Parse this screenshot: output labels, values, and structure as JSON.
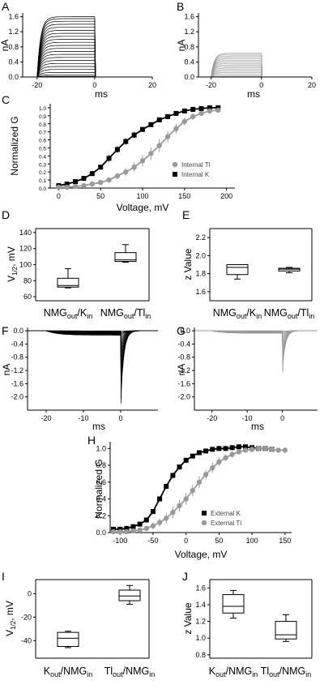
{
  "colors": {
    "k": "#000000",
    "tl": "#9a9a9a",
    "axis": "#000000"
  },
  "panels": {
    "A": {
      "letter": "A",
      "xlabel": "ms",
      "ylabel": "nA",
      "xticks": [
        "-20",
        "0",
        "20"
      ],
      "yticks": [
        "0.0",
        "0.4",
        "0.8",
        "1.2",
        "1.6"
      ]
    },
    "B": {
      "letter": "B",
      "xlabel": "ms",
      "ylabel": "nA",
      "xticks": [
        "-20",
        "0",
        "20"
      ],
      "yticks": [
        "0.0",
        "0.4",
        "0.8",
        "1.2",
        "1.6"
      ]
    },
    "C": {
      "letter": "C",
      "xlabel": "Voltage, mV",
      "ylabel": "Normalized G",
      "xticks": [
        "0",
        "50",
        "100",
        "150",
        "200"
      ],
      "yticks": [
        "0.0",
        "0.1",
        "0.2",
        "0.3",
        "0.4",
        "0.5",
        "0.6",
        "0.7",
        "0.8",
        "0.9",
        "1.0"
      ],
      "legend": [
        "Internal Tl",
        "Internal K"
      ]
    },
    "D": {
      "letter": "D",
      "ylabel_main": "V",
      "ylabel_sub": "1/2",
      "ylabel_tail": ", mV",
      "yticks": [
        "60",
        "80",
        "100",
        "120",
        "140"
      ],
      "cats": [
        {
          "a": "NMG",
          "as": "out",
          "b": "/K",
          "bs": "in"
        },
        {
          "a": "NMG",
          "as": "out",
          "b": "/Tl",
          "bs": "in"
        }
      ]
    },
    "E": {
      "letter": "E",
      "ylabel": "z Value",
      "yticks": [
        "1.6",
        "1.8",
        "2.0",
        "2.2"
      ],
      "cats": [
        {
          "a": "NMG",
          "as": "out",
          "b": "/K",
          "bs": "in"
        },
        {
          "a": "NMG",
          "as": "out",
          "b": "/Tl",
          "bs": "in"
        }
      ]
    },
    "F": {
      "letter": "F",
      "xlabel": "ms",
      "ylabel": "nA",
      "xticks": [
        "-20",
        "-10",
        "0"
      ],
      "yticks": [
        "0.0",
        "-0.4",
        "-0.8",
        "-1.2",
        "-1.6",
        "-2.0"
      ]
    },
    "G": {
      "letter": "G",
      "xlabel": "ms",
      "ylabel": "nA",
      "xticks": [
        "-20",
        "-10",
        "0"
      ],
      "yticks": [
        "0.0",
        "-0.4",
        "-0.8",
        "-1.2",
        "-1.6",
        "-2.0"
      ]
    },
    "H": {
      "letter": "H",
      "xlabel": "Voltage, mV",
      "ylabel": "Normalized G",
      "xticks": [
        "-100",
        "-50",
        "0",
        "50",
        "100",
        "150"
      ],
      "yticks": [
        "0.0",
        "0.2",
        "0.4",
        "0.6",
        "0.8",
        "1.0"
      ],
      "legend": [
        "External K",
        "External Tl"
      ]
    },
    "I": {
      "letter": "I",
      "ylabel_main": "V",
      "ylabel_sub": "1/2",
      "ylabel_tail": ", mV",
      "yticks": [
        "-40",
        "-20",
        "0"
      ],
      "cats": [
        {
          "a": "K",
          "as": "out",
          "b": "/NMG",
          "bs": "in"
        },
        {
          "a": "Tl",
          "as": "out",
          "b": "/NMG",
          "bs": "in"
        }
      ]
    },
    "J": {
      "letter": "J",
      "ylabel": "z Value",
      "yticks": [
        "0.8",
        "1.0",
        "1.2",
        "1.4",
        "1.6"
      ],
      "cats": [
        {
          "a": "K",
          "as": "out",
          "b": "/NMG",
          "bs": "in"
        },
        {
          "a": "Tl",
          "as": "out",
          "b": "/NMG",
          "bs": "in"
        }
      ]
    }
  },
  "chart_data": [
    {
      "panel": "A",
      "type": "line",
      "description_ref": "K+ current families",
      "xlim": [
        -25,
        20
      ],
      "ylim": [
        0,
        1.7
      ],
      "step_start_ms": -20,
      "step_end_ms": 0,
      "steady_state_nA": [
        0.02,
        0.06,
        0.12,
        0.2,
        0.28,
        0.36,
        0.44,
        0.52,
        0.6,
        0.68,
        0.76,
        0.84,
        0.92,
        1.0,
        1.08,
        1.16,
        1.24,
        1.32,
        1.4,
        1.48,
        1.55,
        1.6
      ]
    },
    {
      "panel": "B",
      "type": "line",
      "xlim": [
        -25,
        20
      ],
      "ylim": [
        0,
        1.7
      ],
      "step_start_ms": -20,
      "step_end_ms": 0,
      "steady_state_nA": [
        0.01,
        0.04,
        0.08,
        0.12,
        0.16,
        0.2,
        0.24,
        0.28,
        0.32,
        0.36,
        0.4,
        0.44,
        0.48,
        0.52,
        0.56,
        0.6,
        0.63
      ]
    },
    {
      "panel": "C",
      "type": "scatter",
      "xlim": [
        -10,
        210
      ],
      "ylim": [
        0,
        1.05
      ],
      "series": [
        {
          "name": "Internal K",
          "x": [
            0,
            10,
            20,
            30,
            40,
            50,
            60,
            70,
            80,
            90,
            100,
            110,
            120,
            130,
            140,
            150,
            160,
            170,
            180,
            190
          ],
          "y": [
            0.03,
            0.05,
            0.08,
            0.12,
            0.18,
            0.26,
            0.37,
            0.48,
            0.58,
            0.66,
            0.73,
            0.79,
            0.85,
            0.89,
            0.93,
            0.96,
            0.98,
            0.99,
            1.0,
            1.0
          ],
          "err": [
            0.01,
            0.02,
            0.03,
            0.03,
            0.03,
            0.03,
            0.04,
            0.04,
            0.04,
            0.04,
            0.03,
            0.03,
            0.03,
            0.02,
            0.02,
            0.02,
            0.02,
            0.01,
            0.02,
            0.02
          ]
        },
        {
          "name": "Internal Tl",
          "x": [
            0,
            10,
            20,
            30,
            40,
            50,
            60,
            70,
            80,
            90,
            100,
            110,
            120,
            130,
            140,
            150,
            160,
            170,
            180,
            190
          ],
          "y": [
            0.01,
            0.01,
            0.02,
            0.03,
            0.05,
            0.07,
            0.1,
            0.15,
            0.2,
            0.26,
            0.34,
            0.43,
            0.53,
            0.64,
            0.74,
            0.83,
            0.89,
            0.93,
            0.96,
            0.97
          ],
          "err": [
            0.01,
            0.01,
            0.01,
            0.02,
            0.02,
            0.03,
            0.03,
            0.04,
            0.05,
            0.06,
            0.07,
            0.08,
            0.08,
            0.07,
            0.06,
            0.05,
            0.04,
            0.03,
            0.02,
            0.02
          ]
        }
      ]
    },
    {
      "panel": "D",
      "type": "box",
      "ylim": [
        55,
        145
      ],
      "boxes": [
        {
          "category": "NMGout/Kin",
          "min": 71,
          "q1": 72,
          "median": 74,
          "q3": 83,
          "max": 95
        },
        {
          "category": "NMGout/Tlin",
          "min": 103,
          "q1": 104,
          "median": 106,
          "q3": 115,
          "max": 125
        }
      ]
    },
    {
      "panel": "E",
      "type": "box",
      "ylim": [
        1.5,
        2.3
      ],
      "boxes": [
        {
          "category": "NMGout/Kin",
          "min": 1.74,
          "q1": 1.79,
          "median": 1.87,
          "q3": 1.9,
          "max": 1.9
        },
        {
          "category": "NMGout/Tlin",
          "min": 1.81,
          "q1": 1.83,
          "median": 1.85,
          "q3": 1.86,
          "max": 1.87
        }
      ]
    },
    {
      "panel": "F",
      "type": "line",
      "xlim": [
        -25,
        10
      ],
      "ylim": [
        -2.4,
        0.1
      ],
      "tail_peaks_nA": [
        -0.03,
        -0.08,
        -0.15,
        -0.25,
        -0.38,
        -0.52,
        -0.68,
        -0.85,
        -1.05,
        -1.25,
        -1.45,
        -1.65,
        -1.85,
        -2.05,
        -2.2
      ]
    },
    {
      "panel": "G",
      "type": "line",
      "xlim": [
        -25,
        10
      ],
      "ylim": [
        -2.4,
        0.1
      ],
      "tail_peaks_nA": [
        -0.02,
        -0.05,
        -0.1,
        -0.17,
        -0.25,
        -0.35,
        -0.46,
        -0.58,
        -0.72,
        -0.86,
        -1.0,
        -1.15,
        -1.27
      ]
    },
    {
      "panel": "H",
      "type": "scatter",
      "xlim": [
        -115,
        160
      ],
      "ylim": [
        0,
        1.08
      ],
      "series": [
        {
          "name": "External K",
          "x": [
            -110,
            -100,
            -90,
            -80,
            -70,
            -60,
            -50,
            -40,
            -30,
            -20,
            -10,
            0,
            10,
            20,
            30,
            40,
            50,
            60,
            70,
            80,
            90,
            100,
            110,
            120,
            130
          ],
          "y": [
            0.04,
            0.04,
            0.05,
            0.07,
            0.1,
            0.15,
            0.25,
            0.4,
            0.55,
            0.68,
            0.78,
            0.86,
            0.91,
            0.95,
            0.97,
            0.99,
            1.0,
            1.0,
            1.01,
            1.02,
            1.02,
            1.01,
            1.0,
            1.0,
            0.99
          ],
          "err": [
            0.02,
            0.02,
            0.02,
            0.02,
            0.02,
            0.03,
            0.03,
            0.03,
            0.03,
            0.03,
            0.03,
            0.03,
            0.02,
            0.02,
            0.02,
            0.02,
            0.02,
            0.02,
            0.02,
            0.02,
            0.02,
            0.02,
            0.02,
            0.02,
            0.02
          ]
        },
        {
          "name": "External Tl",
          "x": [
            -110,
            -100,
            -90,
            -80,
            -70,
            -60,
            -50,
            -40,
            -30,
            -20,
            -10,
            0,
            10,
            20,
            30,
            40,
            50,
            60,
            70,
            80,
            90,
            100,
            110,
            120,
            130,
            140,
            150
          ],
          "y": [
            0.01,
            0.01,
            0.01,
            0.02,
            0.03,
            0.05,
            0.08,
            0.12,
            0.17,
            0.24,
            0.32,
            0.4,
            0.5,
            0.6,
            0.69,
            0.77,
            0.84,
            0.89,
            0.93,
            0.96,
            0.98,
            0.99,
            1.0,
            1.0,
            0.99,
            0.98,
            0.98
          ],
          "err": [
            0.02,
            0.02,
            0.02,
            0.02,
            0.03,
            0.03,
            0.04,
            0.05,
            0.06,
            0.07,
            0.07,
            0.07,
            0.07,
            0.07,
            0.06,
            0.06,
            0.05,
            0.04,
            0.04,
            0.03,
            0.03,
            0.02,
            0.02,
            0.02,
            0.02,
            0.02,
            0.02
          ]
        }
      ]
    },
    {
      "panel": "I",
      "type": "box",
      "ylim": [
        -55,
        12
      ],
      "boxes": [
        {
          "category": "Kout/NMGin",
          "min": -46,
          "q1": -45,
          "median": -38,
          "q3": -33,
          "max": -32
        },
        {
          "category": "Tlout/NMGin",
          "min": -9,
          "q1": -6,
          "median": -2,
          "q3": 3,
          "max": 7
        }
      ]
    },
    {
      "panel": "J",
      "type": "box",
      "ylim": [
        0.76,
        1.7
      ],
      "boxes": [
        {
          "category": "Kout/NMGin",
          "min": 1.24,
          "q1": 1.3,
          "median": 1.38,
          "q3": 1.52,
          "max": 1.57
        },
        {
          "category": "Tlout/NMGin",
          "min": 0.96,
          "q1": 0.99,
          "median": 1.04,
          "q3": 1.2,
          "max": 1.28
        }
      ]
    }
  ]
}
